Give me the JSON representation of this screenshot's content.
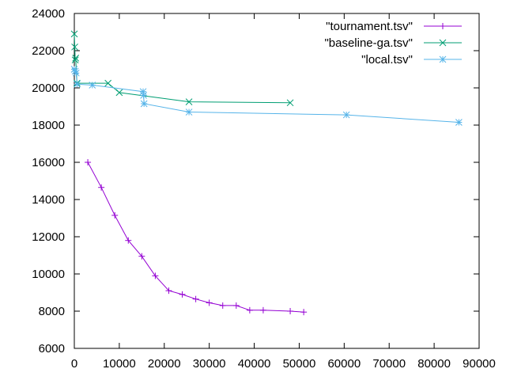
{
  "chart_data": {
    "type": "line",
    "title": "",
    "xlabel": "",
    "ylabel": "",
    "xlim": [
      0,
      90000
    ],
    "ylim": [
      6000,
      24000
    ],
    "x_ticks": [
      0,
      10000,
      20000,
      30000,
      40000,
      50000,
      60000,
      70000,
      80000,
      90000
    ],
    "y_ticks": [
      6000,
      8000,
      10000,
      12000,
      14000,
      16000,
      18000,
      20000,
      22000,
      24000
    ],
    "grid": false,
    "legend_position": "top-right",
    "series": [
      {
        "name": "\"tournament.tsv\"",
        "color": "#9400d3",
        "marker": "plus",
        "points": [
          [
            3000,
            16000
          ],
          [
            6000,
            14650
          ],
          [
            9000,
            13150
          ],
          [
            12000,
            11800
          ],
          [
            15000,
            10950
          ],
          [
            18000,
            9900
          ],
          [
            21000,
            9100
          ],
          [
            24000,
            8900
          ],
          [
            27000,
            8650
          ],
          [
            30000,
            8450
          ],
          [
            33000,
            8300
          ],
          [
            36000,
            8300
          ],
          [
            39000,
            8050
          ],
          [
            42000,
            8050
          ],
          [
            48000,
            8000
          ],
          [
            51000,
            7950
          ]
        ]
      },
      {
        "name": "\"baseline-ga.tsv\"",
        "color": "#009e73",
        "marker": "cross",
        "points": [
          [
            0,
            22900
          ],
          [
            100,
            22200
          ],
          [
            200,
            21500
          ],
          [
            300,
            21600
          ],
          [
            600,
            20250
          ],
          [
            7500,
            20250
          ],
          [
            10000,
            19750
          ],
          [
            25500,
            19250
          ],
          [
            48000,
            19200
          ]
        ]
      },
      {
        "name": "\"local.tsv\"",
        "color": "#56b4e9",
        "marker": "star",
        "points": [
          [
            0,
            21000
          ],
          [
            200,
            20900
          ],
          [
            400,
            20800
          ],
          [
            600,
            20200
          ],
          [
            4000,
            20150
          ],
          [
            15300,
            19800
          ],
          [
            15400,
            19600
          ],
          [
            15500,
            19150
          ],
          [
            25500,
            18700
          ],
          [
            60500,
            18550
          ],
          [
            85500,
            18150
          ]
        ]
      }
    ]
  }
}
